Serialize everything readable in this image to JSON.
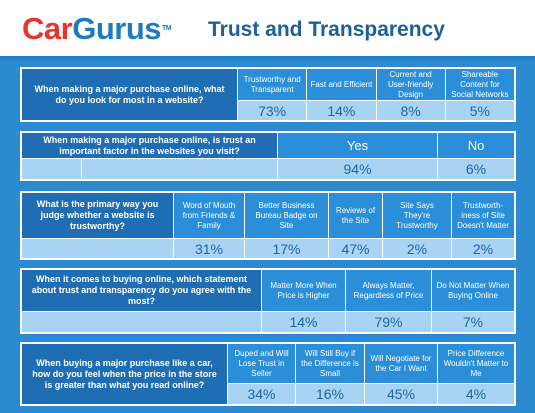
{
  "header": {
    "logo_car": "Car",
    "logo_gurus": "Gurus",
    "logo_tm": "TM",
    "title": "Trust and Transparency",
    "colors": {
      "logo_red": "#e7352c",
      "logo_blue": "#1c7bc1",
      "title": "#1d5f98",
      "background": "#2b8ad0"
    }
  },
  "questions": [
    {
      "question": "When making a major purchase online, what do you look for most in a website?",
      "options": [
        {
          "label": "Trustworthy and Transparent",
          "value": "73%"
        },
        {
          "label": "Fast and Efficient",
          "value": "14%"
        },
        {
          "label": "Current and User-friendly Design",
          "value": "8%"
        },
        {
          "label": "Shareable Content for Social Networks",
          "value": "5%"
        }
      ]
    },
    {
      "question": "When making a major purchase online, is trust an important factor in the websites you visit?",
      "options": [
        {
          "label": "Yes",
          "value": "94%"
        },
        {
          "label": "No",
          "value": "6%"
        }
      ]
    },
    {
      "question": "What is the primary way you judge whether a website is trustworthy?",
      "options": [
        {
          "label": "Word of Mouth from Friends & Family",
          "value": "31%"
        },
        {
          "label": "Better Business Bureau Badge on Site",
          "value": "17%"
        },
        {
          "label": "Reviews of the Site",
          "value": "47%"
        },
        {
          "label": "Site Says They're Trustworthy",
          "value": "2%"
        },
        {
          "label": "Trustworth-iness of Site Doesn't Matter",
          "value": "2%"
        }
      ]
    },
    {
      "question": "When it comes to buying online, which statement about trust and transparency do you agree with the most?",
      "options": [
        {
          "label": "Matter More When Price is Higher",
          "value": "14%"
        },
        {
          "label": "Always Matter, Regardless of Price",
          "value": "79%"
        },
        {
          "label": "Do Not Matter When Buying Online",
          "value": "7%"
        }
      ]
    },
    {
      "question": "When buying a major purchase like a car, how do you feel when the price in the store is greater than what you read online?",
      "options": [
        {
          "label": "Duped and Will Lose Trust in Seller",
          "value": "34%"
        },
        {
          "label": "Will Still Buy if the Difference is Small",
          "value": "16%"
        },
        {
          "label": "Will Negotiate for the Car I Want",
          "value": "45%"
        },
        {
          "label": "Price Difference Wouldn't Matter to Me",
          "value": "4%"
        }
      ]
    }
  ]
}
